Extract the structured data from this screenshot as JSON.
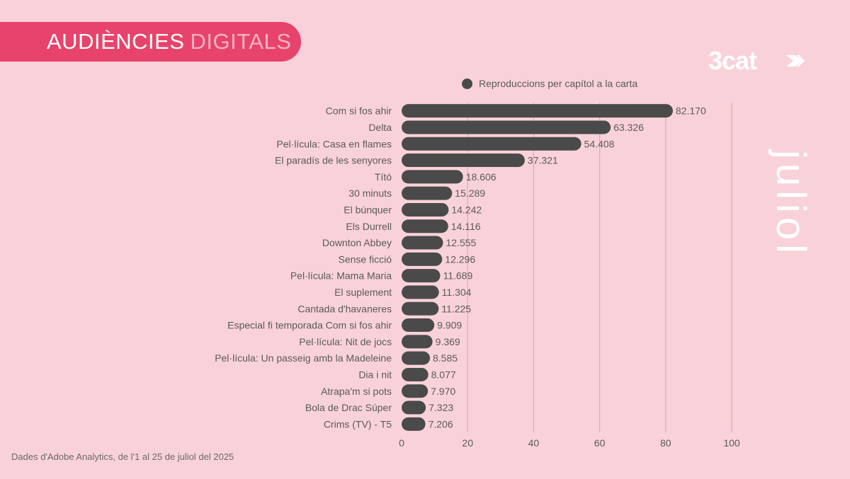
{
  "header": {
    "title_main": "AUDIÈNCIES",
    "title_accent": "DIGITALS"
  },
  "brand": {
    "logo_text": "3cat",
    "logo_icon": "arrow-chevron-icon"
  },
  "month": "juliol",
  "source_note": "Dades d'Adobe Analytics, de l'1 al 25 de juliol del 2025",
  "colors": {
    "background": "#f9d2d9",
    "banner": "#e8436b",
    "bar": "#4a4a4a",
    "grid": "#e3a8b4",
    "text": "#5a5a5a"
  },
  "chart_data": {
    "type": "bar",
    "orientation": "horizontal",
    "legend": {
      "position": "top-right",
      "entries": [
        "Reproduccions per capítol a la carta"
      ]
    },
    "series": [
      {
        "name": "Reproduccions per capítol a la carta"
      }
    ],
    "categories": [
      "Com si fos ahir",
      "Delta",
      "Pel·lícula: Casa en flames",
      "El paradís de les senyores",
      "Tító",
      "30 minuts",
      "El búnquer",
      "Els Durrell",
      "Downton Abbey",
      "Sense ficció",
      "Pel·lícula: Mama Maria",
      "El suplement",
      "Cantada d'havaneres",
      "Especial fi temporada Com si fos ahir",
      "Pel·lícula: Nit de jocs",
      "Pel·lícula: Un passeig amb la Madeleine",
      "Dia i nit",
      "Atrapa'm si pots",
      "Bola de Drac Súper",
      "Crims (TV) - T5"
    ],
    "values": [
      82.17,
      63.326,
      54.408,
      37.321,
      18.606,
      15.289,
      14.242,
      14.116,
      12.555,
      12.296,
      11.689,
      11.304,
      11.225,
      9.909,
      9.369,
      8.585,
      8.077,
      7.97,
      7.323,
      7.206
    ],
    "value_labels": [
      "82.170",
      "63.326",
      "54.408",
      "37.321",
      "18.606",
      "15.289",
      "14.242",
      "14.116",
      "12.555",
      "12.296",
      "11.689",
      "11.304",
      "11.225",
      "9.909",
      "9.369",
      "8.585",
      "8.077",
      "7.970",
      "7.323",
      "7.206"
    ],
    "x_ticks": [
      0,
      20,
      40,
      60,
      80,
      100
    ],
    "xlim": [
      0,
      100
    ],
    "grid": true,
    "title": "",
    "xlabel": "",
    "ylabel": ""
  }
}
